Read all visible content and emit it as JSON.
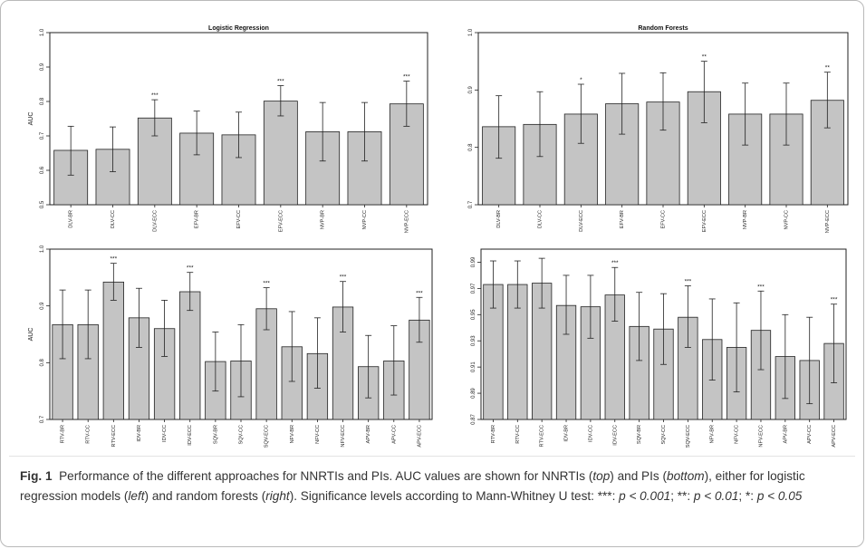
{
  "colors": {
    "bar_fill": "#c4c4c4",
    "stroke": "#222222",
    "background": "#ffffff"
  },
  "chart_data": [
    {
      "type": "bar",
      "title": "Logistic Regression",
      "ylabel": "AUC",
      "ylim": [
        0.5,
        1.0
      ],
      "yticks": [
        0.5,
        0.6,
        0.7,
        0.8,
        0.9,
        1.0
      ],
      "ytick_labels": [
        "0.5",
        "0.6",
        "0.7",
        "0.8",
        "0.9",
        "1.0"
      ],
      "categories": [
        "DLV-BR",
        "DLV-CC",
        "DLV-ECC",
        "EFV-BR",
        "EFV-CC",
        "EFV-ECC",
        "NVP-BR",
        "NVP-CC",
        "NVP-ECC"
      ],
      "values": [
        0.658,
        0.661,
        0.752,
        0.708,
        0.703,
        0.801,
        0.712,
        0.712,
        0.793
      ],
      "error_low": [
        0.586,
        0.596,
        0.7,
        0.645,
        0.637,
        0.758,
        0.627,
        0.627,
        0.728
      ],
      "error_high": [
        0.728,
        0.726,
        0.805,
        0.772,
        0.769,
        0.846,
        0.797,
        0.797,
        0.859
      ],
      "significance": [
        "",
        "",
        "***",
        "",
        "",
        "***",
        "",
        "",
        "***"
      ],
      "grid": false
    },
    {
      "type": "bar",
      "title": "Random Forests",
      "ylabel": "",
      "ylim": [
        0.7,
        1.0
      ],
      "yticks": [
        0.7,
        0.8,
        0.9,
        1.0
      ],
      "ytick_labels": [
        "0.7",
        "0.8",
        "0.9",
        "1.0"
      ],
      "categories": [
        "DLV-BR",
        "DLV-CC",
        "DLV-ECC",
        "EFV-BR",
        "EFV-CC",
        "EFV-ECC",
        "NVP-BR",
        "NVP-CC",
        "NVP-ECC"
      ],
      "values": [
        0.836,
        0.84,
        0.858,
        0.876,
        0.879,
        0.897,
        0.858,
        0.858,
        0.882
      ],
      "error_low": [
        0.781,
        0.784,
        0.807,
        0.823,
        0.83,
        0.843,
        0.804,
        0.804,
        0.834
      ],
      "error_high": [
        0.89,
        0.897,
        0.91,
        0.929,
        0.93,
        0.95,
        0.912,
        0.912,
        0.931
      ],
      "significance": [
        "",
        "",
        "*",
        "",
        "",
        "**",
        "",
        "",
        "**"
      ],
      "grid": false
    },
    {
      "type": "bar",
      "title": "",
      "ylabel": "AUC",
      "ylim": [
        0.7,
        1.0
      ],
      "yticks": [
        0.7,
        0.8,
        0.9,
        1.0
      ],
      "ytick_labels": [
        "0.7",
        "0.8",
        "0.9",
        "1.0"
      ],
      "categories": [
        "RTV-BR",
        "RTV-CC",
        "RTV-ECC",
        "IDV-BR",
        "IDV-CC",
        "IDV-ECC",
        "SQV-BR",
        "SQV-CC",
        "SQV-ECC",
        "NFV-BR",
        "NFV-CC",
        "NFV-ECC",
        "APV-BR",
        "APV-CC",
        "APV-ECC"
      ],
      "values": [
        0.867,
        0.867,
        0.942,
        0.879,
        0.86,
        0.925,
        0.802,
        0.803,
        0.895,
        0.828,
        0.816,
        0.898,
        0.793,
        0.803,
        0.875
      ],
      "error_low": [
        0.807,
        0.807,
        0.91,
        0.827,
        0.811,
        0.892,
        0.75,
        0.74,
        0.858,
        0.767,
        0.755,
        0.854,
        0.738,
        0.743,
        0.836
      ],
      "error_high": [
        0.928,
        0.928,
        0.975,
        0.931,
        0.91,
        0.959,
        0.854,
        0.867,
        0.932,
        0.89,
        0.879,
        0.943,
        0.848,
        0.865,
        0.915
      ],
      "significance": [
        "",
        "",
        "***",
        "",
        "",
        "***",
        "",
        "",
        "***",
        "",
        "",
        "***",
        "",
        "",
        "***"
      ],
      "grid": false
    },
    {
      "type": "bar",
      "title": "",
      "ylabel": "",
      "ylim": [
        0.87,
        1.0
      ],
      "yticks": [
        0.87,
        0.89,
        0.91,
        0.93,
        0.95,
        0.97,
        0.99
      ],
      "ytick_labels": [
        "0.87",
        "0.89",
        "0.91",
        "0.93",
        "0.95",
        "0.97",
        "0.99"
      ],
      "categories": [
        "RTV-BR",
        "RTV-CC",
        "RTV-ECC",
        "IDV-BR",
        "IDV-CC",
        "IDV-ECC",
        "SQV-BR",
        "SQV-CC",
        "SQV-ECC",
        "NFV-BR",
        "NFV-CC",
        "NFV-ECC",
        "APV-BR",
        "APV-CC",
        "APV-ECC"
      ],
      "values": [
        0.973,
        0.973,
        0.974,
        0.957,
        0.956,
        0.965,
        0.941,
        0.939,
        0.948,
        0.931,
        0.925,
        0.938,
        0.918,
        0.915,
        0.928
      ],
      "error_low": [
        0.955,
        0.955,
        0.955,
        0.935,
        0.932,
        0.945,
        0.915,
        0.912,
        0.925,
        0.9,
        0.891,
        0.908,
        0.886,
        0.882,
        0.898
      ],
      "error_high": [
        0.991,
        0.991,
        0.993,
        0.98,
        0.98,
        0.986,
        0.967,
        0.966,
        0.972,
        0.962,
        0.959,
        0.968,
        0.95,
        0.948,
        0.958
      ],
      "significance": [
        "",
        "",
        "",
        "",
        "",
        "***",
        "",
        "",
        "***",
        "",
        "",
        "***",
        "",
        "",
        "***"
      ],
      "grid": false
    }
  ],
  "caption": {
    "label": "Fig. 1",
    "s1": "Performance of the different approaches for NNRTIs and PIs. AUC values are shown for NNRTIs (",
    "top": "top",
    "s2": ") and PIs (",
    "bottom": "bottom",
    "s3": "), either for logistic regression models (",
    "left": "left",
    "s4": ") and random forests (",
    "right": "right",
    "s5": "). Significance levels according to Mann-Whitney U test: ***: ",
    "p1": "p < 0.001",
    "s6": "; **: ",
    "p2": "p < 0.01",
    "s7": "; *: ",
    "p3": "p < 0.05"
  }
}
